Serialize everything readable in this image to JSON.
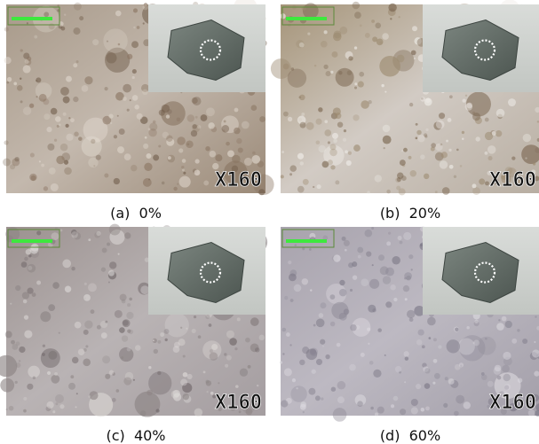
{
  "panels": [
    {
      "caption": "(a)  0%",
      "magnification": "X160"
    },
    {
      "caption": "(b)  20%",
      "magnification": "X160"
    },
    {
      "caption": "(c)  40%",
      "magnification": "X160"
    },
    {
      "caption": "(d)  60%",
      "magnification": "X160"
    }
  ]
}
